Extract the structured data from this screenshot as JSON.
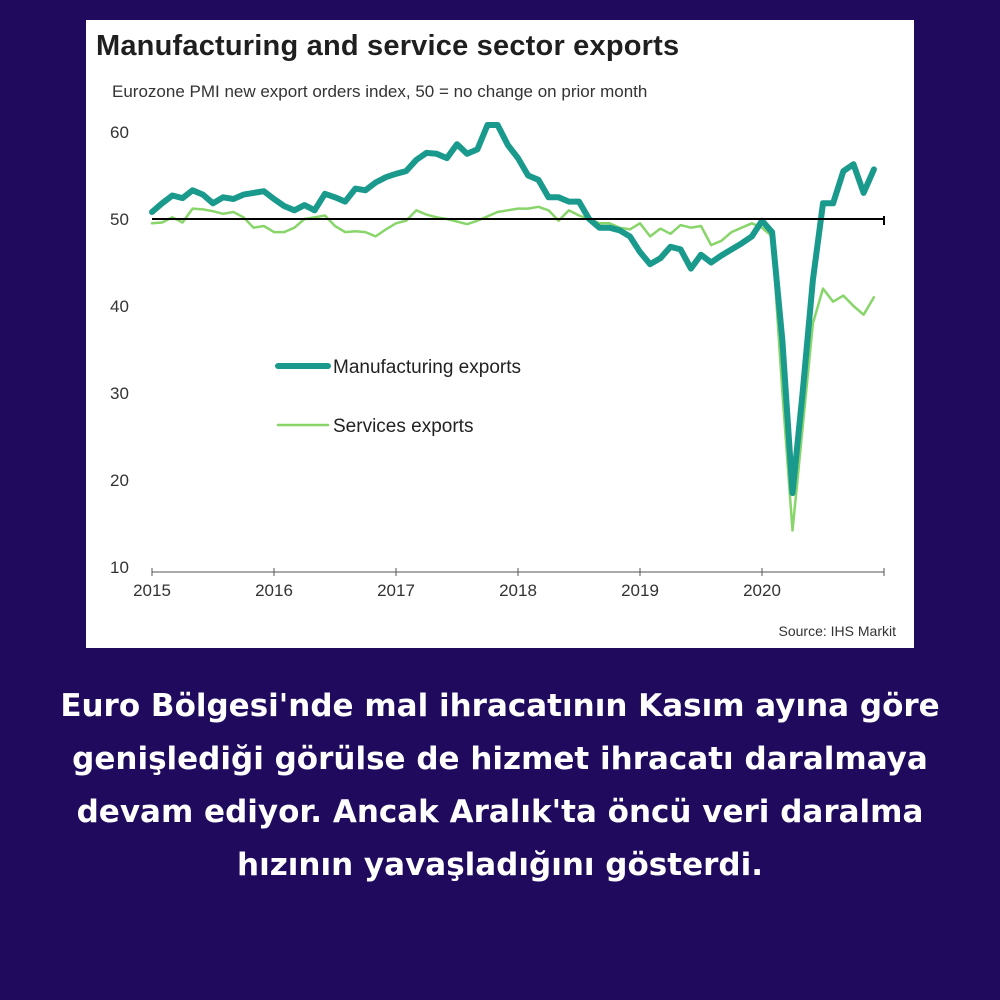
{
  "caption": "Euro Bölgesi'nde mal ihracatının Kasım ayına göre genişlediği görülse de hizmet ihracatı daralmaya devam ediyor. Ancak Aralık'ta öncü veri daralma hızının yavaşladığını gösterdi.",
  "colors": {
    "background": "#1f0a5e",
    "manufacturing": "#1a9a8c",
    "services": "#88d56a"
  },
  "chart_data": {
    "type": "line",
    "title": "Manufacturing and service sector exports",
    "subtitle": "Eurozone PMI new export orders index, 50 = no change on prior month",
    "source": "Source: IHS Markit",
    "xlabel": "",
    "ylabel": "",
    "xlim": [
      2015,
      2021
    ],
    "ylim": [
      10,
      60
    ],
    "x_ticks": [
      "2015",
      "2016",
      "2017",
      "2018",
      "2019",
      "2020"
    ],
    "y_ticks": [
      10,
      20,
      30,
      40,
      50,
      60
    ],
    "reference_line": 50,
    "grid": false,
    "legend_position": "center-left",
    "series": [
      {
        "name": "Manufacturing exports",
        "x": [
          2015.0,
          2015.083,
          2015.167,
          2015.25,
          2015.333,
          2015.417,
          2015.5,
          2015.583,
          2015.667,
          2015.75,
          2015.833,
          2015.917,
          2016.0,
          2016.083,
          2016.167,
          2016.25,
          2016.333,
          2016.417,
          2016.5,
          2016.583,
          2016.667,
          2016.75,
          2016.833,
          2016.917,
          2017.0,
          2017.083,
          2017.167,
          2017.25,
          2017.333,
          2017.417,
          2017.5,
          2017.583,
          2017.667,
          2017.75,
          2017.833,
          2017.917,
          2018.0,
          2018.083,
          2018.167,
          2018.25,
          2018.333,
          2018.417,
          2018.5,
          2018.583,
          2018.667,
          2018.75,
          2018.833,
          2018.917,
          2019.0,
          2019.083,
          2019.167,
          2019.25,
          2019.333,
          2019.417,
          2019.5,
          2019.583,
          2019.667,
          2019.75,
          2019.833,
          2019.917,
          2020.0,
          2020.083,
          2020.167,
          2020.25,
          2020.333,
          2020.417,
          2020.5,
          2020.583,
          2020.667,
          2020.75,
          2020.833,
          2020.917
        ],
        "values": [
          50.8,
          51.8,
          52.7,
          52.4,
          53.3,
          52.8,
          51.8,
          52.5,
          52.3,
          52.8,
          53.0,
          53.2,
          52.3,
          51.5,
          51.0,
          51.6,
          51.0,
          52.9,
          52.5,
          52.0,
          53.5,
          53.3,
          54.2,
          54.8,
          55.2,
          55.5,
          56.8,
          57.6,
          57.5,
          57.0,
          58.6,
          57.5,
          58.0,
          60.8,
          60.8,
          58.5,
          57.0,
          55.0,
          54.5,
          52.5,
          52.5,
          52.0,
          52.0,
          50.0,
          49.0,
          49.0,
          48.7,
          48.0,
          46.2,
          44.8,
          45.5,
          46.8,
          46.5,
          44.3,
          45.9,
          45.0,
          45.8,
          46.5,
          47.2,
          48.0,
          49.8,
          48.5,
          36.0,
          18.5,
          30.0,
          43.0,
          51.8,
          51.8,
          55.5,
          56.3,
          53.0,
          55.7
        ]
      },
      {
        "name": "Services exports",
        "x": [
          2015.0,
          2015.083,
          2015.167,
          2015.25,
          2015.333,
          2015.417,
          2015.5,
          2015.583,
          2015.667,
          2015.75,
          2015.833,
          2015.917,
          2016.0,
          2016.083,
          2016.167,
          2016.25,
          2016.333,
          2016.417,
          2016.5,
          2016.583,
          2016.667,
          2016.75,
          2016.833,
          2016.917,
          2017.0,
          2017.083,
          2017.167,
          2017.25,
          2017.333,
          2017.417,
          2017.5,
          2017.583,
          2017.667,
          2017.75,
          2017.833,
          2017.917,
          2018.0,
          2018.083,
          2018.167,
          2018.25,
          2018.333,
          2018.417,
          2018.5,
          2018.583,
          2018.667,
          2018.75,
          2018.833,
          2018.917,
          2019.0,
          2019.083,
          2019.167,
          2019.25,
          2019.333,
          2019.417,
          2019.5,
          2019.583,
          2019.667,
          2019.75,
          2019.833,
          2019.917,
          2020.0,
          2020.083,
          2020.167,
          2020.25,
          2020.333,
          2020.417,
          2020.5,
          2020.583,
          2020.667,
          2020.75,
          2020.833,
          2020.917
        ],
        "values": [
          49.5,
          49.6,
          50.2,
          49.6,
          51.2,
          51.1,
          50.9,
          50.6,
          50.8,
          50.2,
          49.0,
          49.2,
          48.5,
          48.5,
          49.0,
          50.0,
          50.2,
          50.4,
          49.2,
          48.5,
          48.6,
          48.5,
          48.0,
          48.8,
          49.5,
          49.8,
          51.0,
          50.5,
          50.2,
          50.0,
          49.7,
          49.4,
          49.8,
          50.3,
          50.8,
          51.0,
          51.2,
          51.2,
          51.4,
          51.0,
          49.8,
          51.0,
          50.4,
          50.0,
          49.5,
          49.5,
          49.0,
          48.8,
          49.5,
          48.0,
          48.9,
          48.3,
          49.3,
          49.0,
          49.2,
          47.0,
          47.5,
          48.5,
          49.0,
          49.5,
          49.0,
          48.0,
          30.0,
          14.2,
          26.0,
          38.0,
          42.0,
          40.5,
          41.2,
          40.0,
          39.0,
          41.0
        ]
      }
    ]
  }
}
